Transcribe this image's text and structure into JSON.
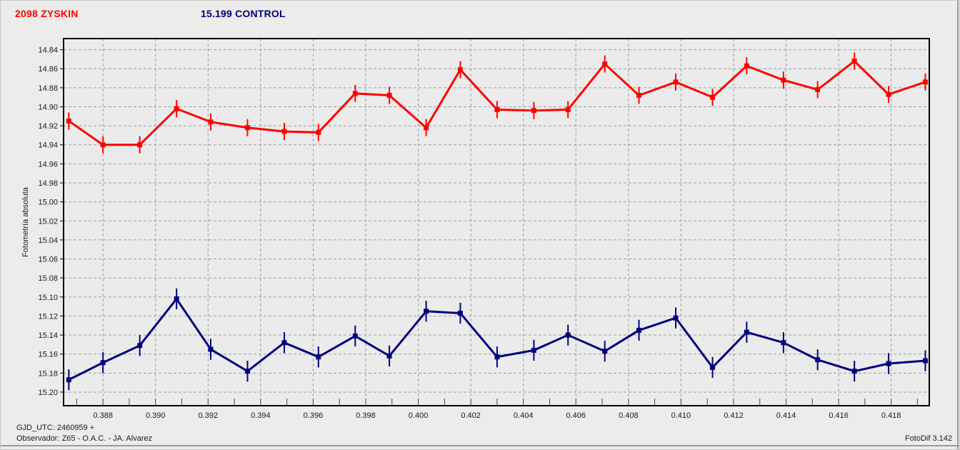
{
  "header": {
    "target_label": "2098 ZYSKIN",
    "control_label": "15.199 CONTROL",
    "target_color": "#FF0000",
    "control_color": "#000080"
  },
  "footer": {
    "gjd_utc": "GJD_UTC: 2460959 +",
    "observer": "Observador: Z65 - O.A.C. - JA. Alvarez",
    "app_version": "FotoDif 3.142"
  },
  "chart_data": {
    "type": "line",
    "title": "",
    "xlabel": "",
    "ylabel": "Fotometría absoluta",
    "y_axis_note": "magnitude scale, brighter (smaller value) at top",
    "grid": "dashed",
    "grid_color": "#9E9E9E",
    "plot_bg": "#EBEBEB",
    "xlim": [
      0.3865,
      0.41945
    ],
    "ylim": [
      14.8283,
      15.2143
    ],
    "x_minor_step": 0.001,
    "x_ticks": [
      0.388,
      0.39,
      0.392,
      0.394,
      0.396,
      0.398,
      0.4,
      0.402,
      0.404,
      0.406,
      0.408,
      0.41,
      0.412,
      0.414,
      0.416,
      0.418
    ],
    "y_ticks": [
      14.84,
      14.86,
      14.88,
      14.9,
      14.92,
      14.94,
      14.96,
      14.98,
      15.0,
      15.02,
      15.04,
      15.06,
      15.08,
      15.1,
      15.12,
      15.14,
      15.16,
      15.18,
      15.2
    ],
    "x": [
      0.3867,
      0.388,
      0.3894,
      0.3908,
      0.3921,
      0.3935,
      0.3949,
      0.3962,
      0.3976,
      0.3989,
      0.4003,
      0.4016,
      0.403,
      0.4044,
      0.4057,
      0.4071,
      0.4084,
      0.4098,
      0.4112,
      0.4125,
      0.4139,
      0.4152,
      0.4166,
      0.4179,
      0.4193
    ],
    "series": [
      {
        "name": "2098 ZYSKIN",
        "color": "#FF0000",
        "marker": "square",
        "error_bar": 0.009,
        "values": [
          14.915,
          14.94,
          14.94,
          14.902,
          14.916,
          14.922,
          14.926,
          14.927,
          14.886,
          14.888,
          14.922,
          14.861,
          14.903,
          14.904,
          14.903,
          14.855,
          14.888,
          14.874,
          14.89,
          14.857,
          14.872,
          14.882,
          14.852,
          14.887,
          14.874
        ]
      },
      {
        "name": "15.199 CONTROL",
        "color": "#000080",
        "marker": "square",
        "error_bar": 0.011,
        "values": [
          15.187,
          15.169,
          15.151,
          15.102,
          15.155,
          15.178,
          15.148,
          15.163,
          15.141,
          15.162,
          15.115,
          15.117,
          15.163,
          15.156,
          15.14,
          15.157,
          15.135,
          15.122,
          15.174,
          15.137,
          15.148,
          15.166,
          15.178,
          15.17,
          15.167
        ]
      }
    ]
  }
}
